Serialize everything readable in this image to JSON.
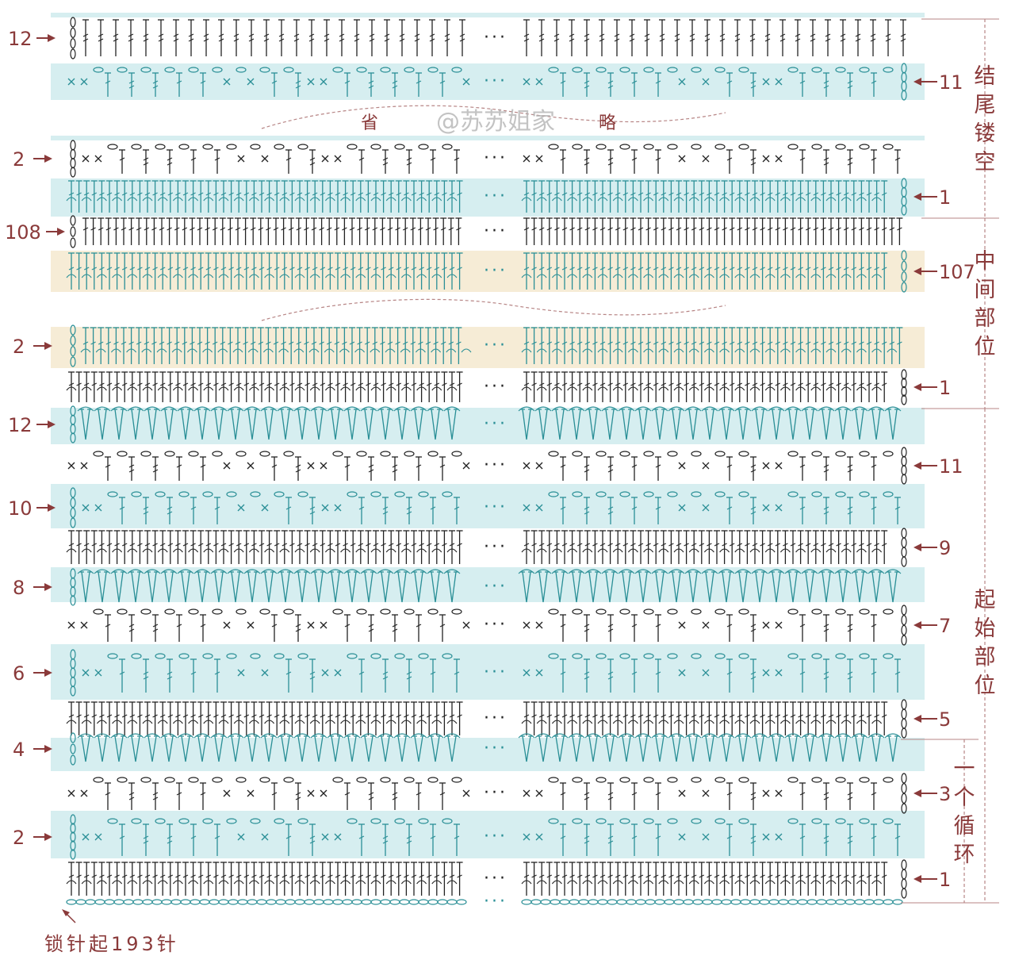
{
  "colors": {
    "band_blue": "#d6eef0",
    "band_tan": "#f6ecd6",
    "stitch_teal": "#2a8f96",
    "stitch_dark": "#222222",
    "label": "#8a3a3a",
    "line": "#b78585"
  },
  "sections": [
    {
      "label": "结尾镂空"
    },
    {
      "label": "中间部位"
    },
    {
      "label": "起始部位"
    },
    {
      "label": "一个循环"
    }
  ],
  "omit_marker": {
    "left": "省",
    "right": "略"
  },
  "watermark": "@苏苏姐家",
  "footer": {
    "text": "锁针起193针"
  },
  "ellipsis": "···",
  "rows": [
    {
      "label": "12",
      "side": "left",
      "band": "none",
      "pattern": "tr",
      "color": "dark",
      "start": "chain",
      "end": ""
    },
    {
      "label": "11",
      "side": "right",
      "band": "blue",
      "pattern": "shell",
      "color": "teal",
      "start": "",
      "end": "chain"
    },
    {
      "label": "2",
      "side": "left",
      "band": "none",
      "pattern": "shell",
      "color": "dark",
      "start": "chain",
      "end": ""
    },
    {
      "label": "1",
      "side": "right",
      "band": "blue",
      "pattern": "dc",
      "color": "teal",
      "start": "",
      "end": "chain"
    },
    {
      "label": "108",
      "side": "left",
      "band": "none",
      "pattern": "dc",
      "color": "dark",
      "start": "chain",
      "end": ""
    },
    {
      "label": "107",
      "side": "right",
      "band": "tan",
      "pattern": "dc",
      "color": "teal",
      "start": "",
      "end": "chain"
    },
    {
      "label": "2",
      "side": "left",
      "band": "tan",
      "pattern": "dc",
      "color": "teal",
      "start": "chain",
      "end": ""
    },
    {
      "label": "1",
      "side": "right",
      "band": "none",
      "pattern": "dc",
      "color": "dark",
      "start": "",
      "end": "chain"
    },
    {
      "label": "12",
      "side": "left",
      "band": "blue",
      "pattern": "v",
      "color": "teal",
      "start": "chain",
      "end": ""
    },
    {
      "label": "11",
      "side": "right",
      "band": "none",
      "pattern": "shell",
      "color": "dark",
      "start": "",
      "end": "chain"
    },
    {
      "label": "10",
      "side": "left",
      "band": "blue",
      "pattern": "shell",
      "color": "teal",
      "start": "chain",
      "end": ""
    },
    {
      "label": "9",
      "side": "right",
      "band": "none",
      "pattern": "dc",
      "color": "dark",
      "start": "",
      "end": "chain"
    },
    {
      "label": "8",
      "side": "left",
      "band": "blue",
      "pattern": "v",
      "color": "teal",
      "start": "chain",
      "end": ""
    },
    {
      "label": "7",
      "side": "right",
      "band": "none",
      "pattern": "shell",
      "color": "dark",
      "start": "",
      "end": "chain"
    },
    {
      "label": "6",
      "side": "left",
      "band": "blue",
      "pattern": "shell",
      "color": "teal",
      "start": "chain",
      "end": ""
    },
    {
      "label": "5",
      "side": "right",
      "band": "none",
      "pattern": "dc",
      "color": "dark",
      "start": "",
      "end": "chain"
    },
    {
      "label": "4",
      "side": "left",
      "band": "blue",
      "pattern": "v",
      "color": "teal",
      "start": "chain",
      "end": ""
    },
    {
      "label": "3",
      "side": "right",
      "band": "none",
      "pattern": "shell",
      "color": "dark",
      "start": "",
      "end": "chain"
    },
    {
      "label": "2",
      "side": "left",
      "band": "blue",
      "pattern": "shell",
      "color": "teal",
      "start": "chain",
      "end": ""
    },
    {
      "label": "1",
      "side": "right",
      "band": "none",
      "pattern": "dc",
      "color": "dark",
      "start": "",
      "end": "chain"
    },
    {
      "label": "",
      "side": "none",
      "band": "none",
      "pattern": "chain",
      "color": "teal",
      "start": "",
      "end": ""
    }
  ]
}
